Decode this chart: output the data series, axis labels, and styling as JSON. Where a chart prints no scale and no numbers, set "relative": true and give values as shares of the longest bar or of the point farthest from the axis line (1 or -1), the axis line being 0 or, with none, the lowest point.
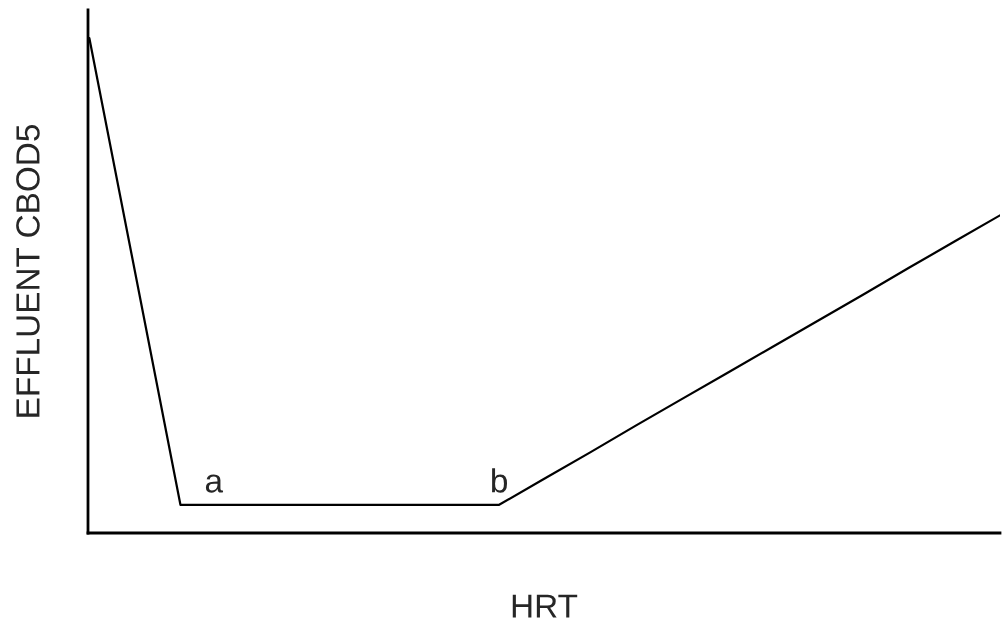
{
  "chart_data": {
    "type": "line",
    "relative": true,
    "xlabel": "HRT",
    "ylabel": "EFFLUENT CBOD5",
    "categories": [
      null,
      null,
      null,
      null,
      null,
      null,
      null,
      null,
      null,
      null,
      null,
      null,
      null,
      null,
      null,
      null,
      null,
      null,
      null,
      null,
      null
    ],
    "series": [
      {
        "color": "#000000",
        "values": [
          1.0,
          0.529,
          0.057,
          0.057,
          0.057,
          0.057,
          0.057,
          0.057,
          0.057,
          0.057,
          0.11,
          0.163,
          0.217,
          0.27,
          0.323,
          0.376,
          0.429,
          0.482,
          0.536,
          0.589,
          0.642
        ]
      }
    ],
    "annotations": [
      {
        "text": "a",
        "y": 0.057
      },
      {
        "text": "b",
        "y": 0.057
      }
    ],
    "marker": "none",
    "line_style": "solid"
  }
}
